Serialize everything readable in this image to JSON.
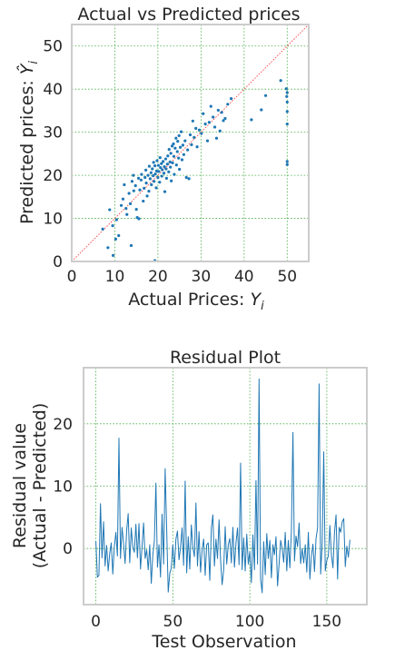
{
  "chart_data": [
    {
      "type": "scatter",
      "title": "Actual vs Predicted prices",
      "xlabel_text": "Actual Prices: ",
      "xlabel_sym": "Y",
      "xlabel_sub": "i",
      "ylabel_text": "Predicted prices: ",
      "ylabel_sym": "Ŷ",
      "ylabel_sub": "i",
      "xlim": [
        0,
        55
      ],
      "ylim": [
        0,
        55
      ],
      "xticks": [
        0,
        10,
        20,
        30,
        40,
        50
      ],
      "yticks": [
        0,
        10,
        20,
        30,
        40,
        50
      ],
      "grid": true,
      "reference_line": "y = x",
      "colors": {
        "points": "#1f77b4",
        "reference": "#ff4444",
        "grid": "#2ca02c"
      },
      "points": [
        [
          7.2,
          7.5
        ],
        [
          8.4,
          3.2
        ],
        [
          8.8,
          12.0
        ],
        [
          9.5,
          8.3
        ],
        [
          9.6,
          1.4
        ],
        [
          10.2,
          5.2
        ],
        [
          10.4,
          9.7
        ],
        [
          10.9,
          6.0
        ],
        [
          11.5,
          13.0
        ],
        [
          11.9,
          14.5
        ],
        [
          12.2,
          17.8
        ],
        [
          12.6,
          12.3
        ],
        [
          12.8,
          10.9
        ],
        [
          13.3,
          15.8
        ],
        [
          13.6,
          13.4
        ],
        [
          14.0,
          18.6
        ],
        [
          14.3,
          20.0
        ],
        [
          14.4,
          16.4
        ],
        [
          14.8,
          17.6
        ],
        [
          15.0,
          12.1
        ],
        [
          15.2,
          10.2
        ],
        [
          15.5,
          19.3
        ],
        [
          15.6,
          9.9
        ],
        [
          15.8,
          16.6
        ],
        [
          16.1,
          18.9
        ],
        [
          16.2,
          20.2
        ],
        [
          16.6,
          14.0
        ],
        [
          16.8,
          17.0
        ],
        [
          17.0,
          19.5
        ],
        [
          17.2,
          21.2
        ],
        [
          17.3,
          18.2
        ],
        [
          17.5,
          15.2
        ],
        [
          17.7,
          20.0
        ],
        [
          17.9,
          16.3
        ],
        [
          18.0,
          22.1
        ],
        [
          18.2,
          19.2
        ],
        [
          18.4,
          20.6
        ],
        [
          18.5,
          17.8
        ],
        [
          18.7,
          21.5
        ],
        [
          18.9,
          19.9
        ],
        [
          19.0,
          23.0
        ],
        [
          19.1,
          18.6
        ],
        [
          19.3,
          22.2
        ],
        [
          19.4,
          20.3
        ],
        [
          19.6,
          17.1
        ],
        [
          19.7,
          21.0
        ],
        [
          19.8,
          23.4
        ],
        [
          20.0,
          19.5
        ],
        [
          20.1,
          22.3
        ],
        [
          20.2,
          20.9
        ],
        [
          20.4,
          18.4
        ],
        [
          20.5,
          24.1
        ],
        [
          20.6,
          21.8
        ],
        [
          20.8,
          22.7
        ],
        [
          20.9,
          19.8
        ],
        [
          21.0,
          21.3
        ],
        [
          21.2,
          23.2
        ],
        [
          21.4,
          20.5
        ],
        [
          21.5,
          22.0
        ],
        [
          21.6,
          16.2
        ],
        [
          21.8,
          23.8
        ],
        [
          21.9,
          21.5
        ],
        [
          22.0,
          19.3
        ],
        [
          22.2,
          22.6
        ],
        [
          22.3,
          24.5
        ],
        [
          22.5,
          20.8
        ],
        [
          22.6,
          26.0
        ],
        [
          22.8,
          23.1
        ],
        [
          22.9,
          21.9
        ],
        [
          23.0,
          25.1
        ],
        [
          23.1,
          18.7
        ],
        [
          23.3,
          26.8
        ],
        [
          23.4,
          22.9
        ],
        [
          23.6,
          27.3
        ],
        [
          23.7,
          24.4
        ],
        [
          23.8,
          20.2
        ],
        [
          24.0,
          26.3
        ],
        [
          24.2,
          28.6
        ],
        [
          24.3,
          22.4
        ],
        [
          24.5,
          25.5
        ],
        [
          24.6,
          27.9
        ],
        [
          24.8,
          24.0
        ],
        [
          24.9,
          29.2
        ],
        [
          25.0,
          21.4
        ],
        [
          25.2,
          26.5
        ],
        [
          25.4,
          30.1
        ],
        [
          25.6,
          23.6
        ],
        [
          25.8,
          27.0
        ],
        [
          26.0,
          24.8
        ],
        [
          26.3,
          28.0
        ],
        [
          26.6,
          19.5
        ],
        [
          26.9,
          25.9
        ],
        [
          27.2,
          19.2
        ],
        [
          27.5,
          29.4
        ],
        [
          27.8,
          27.1
        ],
        [
          28.1,
          32.6
        ],
        [
          28.4,
          28.8
        ],
        [
          28.8,
          30.9
        ],
        [
          29.1,
          26.6
        ],
        [
          29.6,
          30.5
        ],
        [
          30.1,
          29.7
        ],
        [
          30.5,
          34.3
        ],
        [
          31.0,
          31.9
        ],
        [
          31.5,
          28.0
        ],
        [
          31.9,
          32.3
        ],
        [
          32.3,
          36.0
        ],
        [
          32.8,
          33.5
        ],
        [
          33.2,
          31.2
        ],
        [
          33.6,
          28.6
        ],
        [
          34.0,
          35.1
        ],
        [
          34.4,
          30.3
        ],
        [
          34.8,
          34.6
        ],
        [
          35.2,
          32.7
        ],
        [
          35.6,
          33.2
        ],
        [
          36.2,
          36.5
        ],
        [
          37.0,
          37.8
        ],
        [
          41.7,
          32.9
        ],
        [
          44.0,
          35.2
        ],
        [
          45.0,
          38.5
        ],
        [
          48.5,
          42.0
        ],
        [
          49.8,
          40.1
        ],
        [
          49.9,
          38.3
        ],
        [
          50.0,
          37.0
        ],
        [
          50.0,
          39.2
        ],
        [
          50.0,
          34.8
        ],
        [
          50.0,
          31.9
        ],
        [
          50.0,
          23.2
        ],
        [
          50.0,
          22.5
        ],
        [
          19.3,
          0.2
        ],
        [
          13.8,
          3.7
        ]
      ]
    },
    {
      "type": "line",
      "title": "Residual Plot",
      "xlabel": "Test Observation",
      "ylabel_line1": "Residual value",
      "ylabel_line2": "(Actual - Predicted)",
      "xlim": [
        -8,
        176
      ],
      "ylim": [
        -9,
        29
      ],
      "xticks": [
        0,
        50,
        100,
        150
      ],
      "yticks": [
        0,
        10,
        20
      ],
      "grid": true,
      "colors": {
        "line": "#1f77b4",
        "grid": "#2ca02c"
      },
      "x_start": 0,
      "values": [
        1.2,
        -4.6,
        -4.3,
        7.2,
        -1.5,
        4.3,
        -2.8,
        0.5,
        -3.6,
        -0.8,
        0.9,
        -4.1,
        0.3,
        2.6,
        -1.2,
        17.7,
        -1.6,
        3.4,
        0.8,
        -2.4,
        2.9,
        5.6,
        -2.3,
        3.3,
        0.2,
        -0.6,
        3.9,
        -1.5,
        4.0,
        -3.3,
        0.3,
        4.1,
        -1.6,
        -0.2,
        -3.4,
        0.6,
        -5.6,
        -1.0,
        1.2,
        10.5,
        -3.0,
        0.6,
        -4.6,
        5.5,
        -2.5,
        12.8,
        3.1,
        -7.0,
        -4.0,
        -3.1,
        0.6,
        -3.2,
        1.5,
        2.8,
        -1.8,
        0.2,
        3.3,
        -2.7,
        10.8,
        -3.9,
        1.9,
        -3.3,
        3.8,
        0.2,
        -1.3,
        7.3,
        -2.8,
        2.7,
        -3.8,
        -0.2,
        1.5,
        -4.3,
        0.6,
        0.9,
        -5.1,
        3.2,
        5.4,
        -2.8,
        1.5,
        -1.6,
        4.6,
        -1.8,
        -5.8,
        -3.5,
        3.5,
        -2.5,
        0.6,
        1.6,
        -2.3,
        3.4,
        -3.0,
        0.9,
        3.3,
        -2.6,
        13.7,
        -3.4,
        1.7,
        -3.6,
        2.3,
        -2.5,
        -0.5,
        -5.5,
        2.2,
        -3.4,
        10.9,
        -2.5,
        27.2,
        -4.9,
        -7.1,
        1.1,
        -4.2,
        2.4,
        -1.6,
        1.3,
        -4.7,
        0.6,
        -1.0,
        1.9,
        -6.0,
        -2.5,
        1.3,
        0.0,
        -2.2,
        2.6,
        -3.6,
        1.3,
        -3.1,
        2.8,
        18.6,
        -2.0,
        2.0,
        0.3,
        4.1,
        -2.4,
        0.0,
        -2.3,
        0.6,
        -3.8,
        2.6,
        -4.9,
        -1.1,
        0.7,
        -3.7,
        1.6,
        3.3,
        26.4,
        -4.1,
        0.9,
        15.5,
        -3.6,
        -1.9,
        -1.2,
        3.7,
        -1.1,
        -3.1,
        2.6,
        5.4,
        -4.9,
        3.4,
        2.6,
        4.3,
        4.8,
        -2.9,
        0.4,
        -1.4,
        1.4
      ]
    }
  ]
}
